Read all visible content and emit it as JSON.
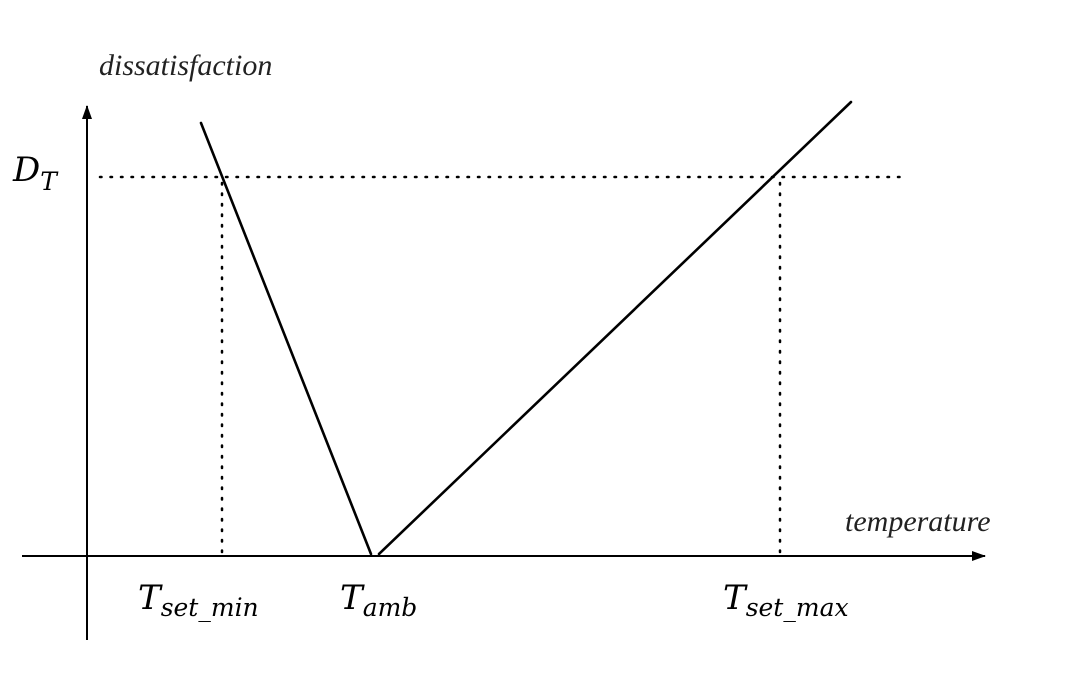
{
  "y_axis_label": "dissatisfaction",
  "x_axis_label": "temperature",
  "threshold_label": {
    "main": "D",
    "sub": "T"
  },
  "point_labels": {
    "t_set_min": {
      "main": "T",
      "sub": "set_min"
    },
    "t_amb": {
      "main": "T",
      "sub": "amb"
    },
    "t_set_max": {
      "main": "T",
      "sub": "set_max"
    }
  },
  "colors": {
    "lines": "#000000",
    "background": "#ffffff"
  }
}
